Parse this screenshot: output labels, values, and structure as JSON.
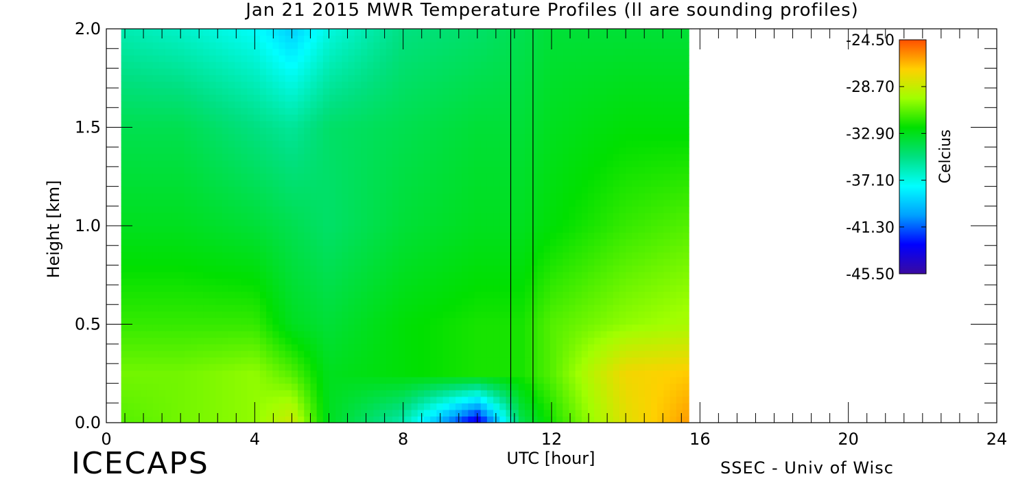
{
  "chart_data": {
    "type": "heatmap",
    "title": "Jan 21 2015 MWR Temperature Profiles (ll are sounding profiles)",
    "xlabel": "UTC [hour]",
    "ylabel": "Height [km]",
    "xlim": [
      0,
      24
    ],
    "ylim": [
      0,
      2.0
    ],
    "x_ticks": [
      "0",
      "4",
      "8",
      "12",
      "16",
      "20",
      "24"
    ],
    "y_ticks": [
      "0.0",
      "0.5",
      "1.0",
      "1.5",
      "2.0"
    ],
    "data_extent_hours": [
      0.4,
      15.7
    ],
    "sounding_profiles_hours": [
      10.9,
      11.5
    ],
    "colorbar": {
      "label": "Celcius",
      "min": -45.5,
      "max": -24.5,
      "ticks": [
        "-24.50",
        "-28.70",
        "-32.90",
        "-37.10",
        "-41.30",
        "-45.50"
      ],
      "colors": [
        "#3a0aa0",
        "#0000ff",
        "#00a0ff",
        "#00ffff",
        "#00e080",
        "#00e000",
        "#a0ff00",
        "#ffd000",
        "#ff5000"
      ]
    },
    "temperature_field_celsius": {
      "heights_km": [
        0.0,
        0.25,
        0.5,
        1.0,
        1.5,
        2.0
      ],
      "hours": [
        0.4,
        2,
        4,
        5,
        6,
        8,
        10,
        11.2,
        12,
        14,
        15.7
      ],
      "values": [
        [
          -31,
          -30.5,
          -30,
          -28.5,
          -33,
          -36,
          -44,
          -34,
          -32,
          -28,
          -26
        ],
        [
          -30.5,
          -30.5,
          -30,
          -31,
          -33,
          -32.5,
          -32,
          -32,
          -31,
          -27.5,
          -27
        ],
        [
          -31.5,
          -31.5,
          -31.5,
          -33,
          -33.5,
          -32.5,
          -32,
          -32,
          -31,
          -30,
          -29.5
        ],
        [
          -33,
          -33,
          -33.5,
          -34,
          -34.5,
          -33.5,
          -33,
          -33,
          -32.5,
          -31.5,
          -31
        ],
        [
          -34,
          -34,
          -35,
          -35.5,
          -34.5,
          -34,
          -33.5,
          -33.5,
          -33,
          -32.5,
          -32.5
        ],
        [
          -36,
          -36.5,
          -37.5,
          -39,
          -37,
          -35,
          -34.5,
          -34,
          -33.5,
          -33.5,
          -33.5
        ]
      ]
    }
  },
  "footer": {
    "brand": "ICECAPS",
    "credit": "SSEC - Univ of Wisc"
  }
}
